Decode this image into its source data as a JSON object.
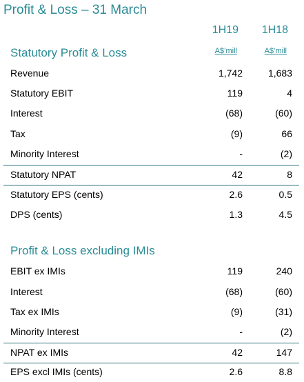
{
  "title": "Profit & Loss – 31 March",
  "columns": [
    "1H19",
    "1H18"
  ],
  "sections": [
    {
      "title": "Statutory Profit & Loss",
      "units": [
        "A$’mill",
        "A$’mill"
      ],
      "rows": [
        {
          "label": "Revenue",
          "v1": "1,742",
          "v2": "1,683"
        },
        {
          "label": "Statutory EBIT",
          "v1": "119",
          "v2": "4"
        },
        {
          "label": "Interest",
          "v1": "(68)",
          "v2": "(60)"
        },
        {
          "label": "Tax",
          "v1": "(9)",
          "v2": "66"
        },
        {
          "label": "Minority Interest",
          "v1": "-",
          "v2": "(2)"
        },
        {
          "label": "Statutory NPAT",
          "v1": "42",
          "v2": "8"
        },
        {
          "label": "Statutory EPS (cents)",
          "v1": "2.6",
          "v2": "0.5"
        },
        {
          "label": "DPS (cents)",
          "v1": "1.3",
          "v2": "4.5"
        }
      ]
    },
    {
      "title": "Profit & Loss excluding IMIs",
      "rows": [
        {
          "label": "EBIT ex IMIs",
          "v1": "119",
          "v2": "240"
        },
        {
          "label": "Interest",
          "v1": "(68)",
          "v2": "(60)"
        },
        {
          "label": "Tax ex IMIs",
          "v1": "(9)",
          "v2": "(31)"
        },
        {
          "label": "Minority Interest",
          "v1": "-",
          "v2": "(2)"
        },
        {
          "label": "NPAT ex IMIs",
          "v1": "42",
          "v2": "147"
        },
        {
          "label": "EPS excl IMIs (cents)",
          "v1": "2.6",
          "v2": "8.8"
        }
      ]
    }
  ],
  "colors": {
    "accent": "#2a8c95",
    "rule": "#2a6f7a"
  }
}
